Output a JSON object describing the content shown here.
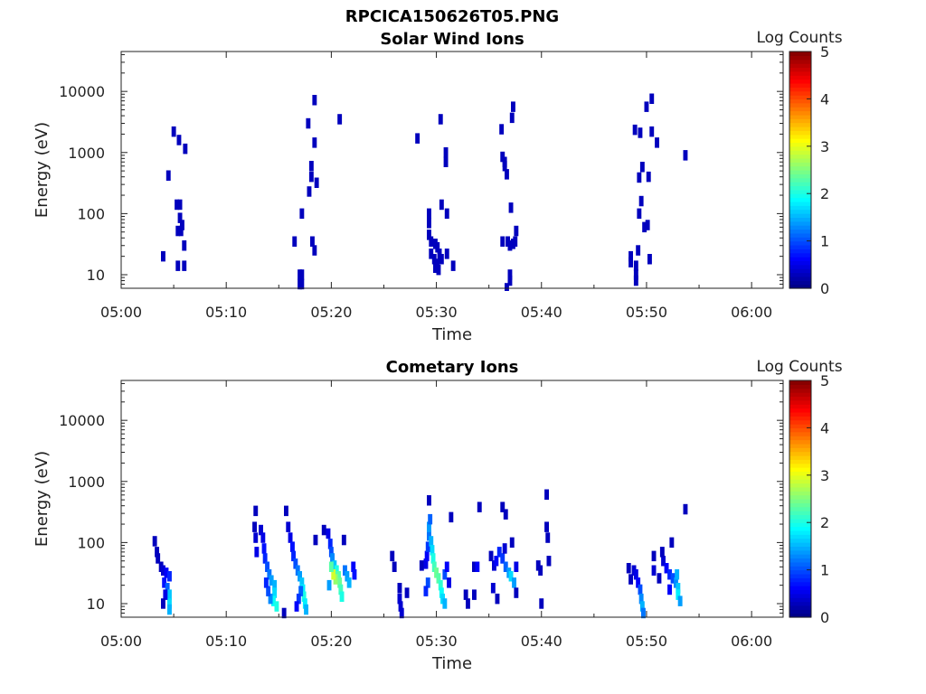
{
  "figure": {
    "title": "RPCICA150626T05.PNG"
  },
  "chart_data": [
    {
      "type": "heatmap",
      "title": "Solar Wind Ions",
      "xlabel": "Time",
      "ylabel": "Energy (eV)",
      "colorbar_label": "Log Counts",
      "x_ticks": [
        "05:00",
        "05:10",
        "05:20",
        "05:30",
        "05:40",
        "05:50",
        "06:00"
      ],
      "x_range_min": [
        0,
        63
      ],
      "y_ticks": [
        "10",
        "100",
        "1000",
        "10000"
      ],
      "y_scale": "log",
      "y_range": [
        6,
        45000
      ],
      "c_ticks": [
        "0",
        "1",
        "2",
        "3",
        "4",
        "5"
      ],
      "c_range": [
        0,
        5
      ],
      "cells": [
        [
          4.0,
          20,
          0.3
        ],
        [
          4.5,
          420,
          0.3
        ],
        [
          5.0,
          2200,
          0.3
        ],
        [
          5.5,
          1600,
          0.3
        ],
        [
          6.1,
          1150,
          0.3
        ],
        [
          5.3,
          140,
          0.3
        ],
        [
          5.6,
          140,
          0.3
        ],
        [
          5.6,
          85,
          0.3
        ],
        [
          5.8,
          65,
          0.3
        ],
        [
          5.4,
          52,
          0.3
        ],
        [
          5.7,
          52,
          0.3
        ],
        [
          6.0,
          30,
          0.3
        ],
        [
          5.4,
          14,
          0.3
        ],
        [
          6.0,
          14,
          0.3
        ],
        [
          16.5,
          35,
          0.3
        ],
        [
          17.0,
          10,
          0.3
        ],
        [
          17.2,
          10,
          0.3
        ],
        [
          17.0,
          7,
          0.3
        ],
        [
          17.2,
          7,
          0.3
        ],
        [
          17.2,
          100,
          0.3
        ],
        [
          17.8,
          3000,
          0.3
        ],
        [
          18.1,
          600,
          0.3
        ],
        [
          18.4,
          1450,
          0.3
        ],
        [
          18.1,
          400,
          0.3
        ],
        [
          17.9,
          230,
          0.3
        ],
        [
          18.6,
          320,
          0.3
        ],
        [
          18.4,
          7200,
          0.3
        ],
        [
          18.2,
          35,
          0.3
        ],
        [
          18.4,
          25,
          0.3
        ],
        [
          20.8,
          3500,
          0.3
        ],
        [
          28.2,
          1700,
          0.3
        ],
        [
          29.3,
          100,
          0.3
        ],
        [
          29.3,
          70,
          0.3
        ],
        [
          29.3,
          45,
          0.3
        ],
        [
          29.5,
          35,
          0.3
        ],
        [
          29.9,
          32,
          0.3
        ],
        [
          30.1,
          28,
          0.3
        ],
        [
          29.5,
          22,
          0.3
        ],
        [
          29.8,
          18,
          0.3
        ],
        [
          30.1,
          15,
          0.3
        ],
        [
          30.3,
          22,
          0.3
        ],
        [
          30.5,
          18,
          0.3
        ],
        [
          30.2,
          12,
          0.3
        ],
        [
          29.9,
          13,
          0.3
        ],
        [
          31.0,
          22,
          0.3
        ],
        [
          31.6,
          14,
          0.3
        ],
        [
          30.4,
          3500,
          0.3
        ],
        [
          30.9,
          1000,
          0.3
        ],
        [
          30.9,
          700,
          0.3
        ],
        [
          30.5,
          140,
          0.3
        ],
        [
          31.0,
          100,
          0.3
        ],
        [
          36.3,
          35,
          0.3
        ],
        [
          36.8,
          35,
          0.3
        ],
        [
          37.3,
          32,
          0.3
        ],
        [
          37.5,
          35,
          0.3
        ],
        [
          37.0,
          30,
          0.3
        ],
        [
          37.6,
          52,
          0.3
        ],
        [
          37.0,
          10,
          0.3
        ],
        [
          37.0,
          8,
          0.3
        ],
        [
          36.2,
          2400,
          0.3
        ],
        [
          36.3,
          850,
          0.3
        ],
        [
          36.5,
          700,
          0.3
        ],
        [
          36.5,
          600,
          0.3
        ],
        [
          36.7,
          440,
          0.3
        ],
        [
          37.2,
          3700,
          0.3
        ],
        [
          37.3,
          5600,
          0.3
        ],
        [
          37.1,
          125,
          0.3
        ],
        [
          36.7,
          6,
          0.3
        ],
        [
          48.5,
          20,
          0.3
        ],
        [
          48.5,
          16,
          0.3
        ],
        [
          49.0,
          14,
          0.3
        ],
        [
          49.0,
          10,
          0.3
        ],
        [
          49.0,
          8,
          0.3
        ],
        [
          49.2,
          25,
          0.3
        ],
        [
          50.3,
          18,
          0.3
        ],
        [
          48.9,
          2350,
          0.3
        ],
        [
          49.4,
          2100,
          0.3
        ],
        [
          50.0,
          5600,
          0.3
        ],
        [
          50.5,
          7600,
          0.3
        ],
        [
          50.5,
          2200,
          0.3
        ],
        [
          51.0,
          1450,
          0.3
        ],
        [
          49.6,
          580,
          0.3
        ],
        [
          49.3,
          390,
          0.3
        ],
        [
          49.5,
          160,
          0.3
        ],
        [
          49.3,
          100,
          0.3
        ],
        [
          50.1,
          65,
          0.3
        ],
        [
          49.8,
          60,
          0.3
        ],
        [
          53.7,
          900,
          0.3
        ],
        [
          50.2,
          400,
          0.3
        ]
      ]
    },
    {
      "type": "heatmap",
      "title": "Cometary Ions",
      "xlabel": "Time",
      "ylabel": "Energy (eV)",
      "colorbar_label": "Log Counts",
      "x_ticks": [
        "05:00",
        "05:10",
        "05:20",
        "05:30",
        "05:40",
        "05:50",
        "06:00"
      ],
      "x_range_min": [
        0,
        63
      ],
      "y_ticks": [
        "10",
        "100",
        "1000",
        "10000"
      ],
      "y_scale": "log",
      "y_range": [
        6,
        45000
      ],
      "c_ticks": [
        "0",
        "1",
        "2",
        "3",
        "4",
        "5"
      ],
      "c_range": [
        0,
        5
      ],
      "cells": [
        [
          3.2,
          105,
          0.3
        ],
        [
          3.4,
          70,
          0.3
        ],
        [
          3.5,
          55,
          0.3
        ],
        [
          3.8,
          40,
          0.3
        ],
        [
          4.0,
          35,
          0.4
        ],
        [
          4.3,
          32,
          0.6
        ],
        [
          4.6,
          28,
          0.8
        ],
        [
          4.1,
          22,
          0.7
        ],
        [
          4.4,
          18,
          1.1
        ],
        [
          4.6,
          14,
          1.6
        ],
        [
          4.6,
          10,
          1.7
        ],
        [
          4.6,
          8,
          1.5
        ],
        [
          4.2,
          14,
          0.5
        ],
        [
          4.0,
          10,
          0.3
        ],
        [
          12.8,
          330,
          0.3
        ],
        [
          12.7,
          180,
          0.3
        ],
        [
          12.8,
          120,
          0.4
        ],
        [
          12.9,
          70,
          0.5
        ],
        [
          13.3,
          160,
          0.4
        ],
        [
          13.5,
          120,
          0.5
        ],
        [
          13.6,
          80,
          0.7
        ],
        [
          13.7,
          55,
          0.8
        ],
        [
          13.9,
          40,
          1.0
        ],
        [
          14.1,
          30,
          1.2
        ],
        [
          14.3,
          24,
          1.4
        ],
        [
          14.6,
          20,
          1.5
        ],
        [
          14.6,
          15,
          1.7
        ],
        [
          14.5,
          11,
          1.9
        ],
        [
          14.8,
          9,
          2.0
        ],
        [
          14.2,
          12,
          1.3
        ],
        [
          14.0,
          16,
          1.0
        ],
        [
          13.8,
          22,
          0.8
        ],
        [
          15.5,
          7,
          0.3
        ],
        [
          15.7,
          330,
          0.3
        ],
        [
          15.9,
          180,
          0.4
        ],
        [
          16.1,
          120,
          0.5
        ],
        [
          16.3,
          85,
          0.7
        ],
        [
          16.4,
          60,
          0.8
        ],
        [
          16.6,
          45,
          1.0
        ],
        [
          16.8,
          35,
          1.2
        ],
        [
          17.0,
          28,
          1.4
        ],
        [
          17.2,
          22,
          1.6
        ],
        [
          17.3,
          17,
          1.8
        ],
        [
          17.4,
          13,
          2.0
        ],
        [
          17.5,
          10,
          1.8
        ],
        [
          17.6,
          8,
          1.5
        ],
        [
          17.1,
          16,
          1.1
        ],
        [
          16.9,
          12,
          0.9
        ],
        [
          16.7,
          9,
          0.6
        ],
        [
          18.5,
          110,
          0.3
        ],
        [
          19.3,
          160,
          0.3
        ],
        [
          19.7,
          140,
          0.5
        ],
        [
          19.9,
          95,
          0.8
        ],
        [
          20.0,
          70,
          1.0
        ],
        [
          20.1,
          55,
          1.3
        ],
        [
          20.3,
          42,
          1.6
        ],
        [
          20.5,
          35,
          2.0
        ],
        [
          20.7,
          28,
          2.3
        ],
        [
          20.8,
          22,
          2.4
        ],
        [
          20.9,
          17,
          2.2
        ],
        [
          21.0,
          13,
          2.0
        ],
        [
          20.4,
          25,
          2.6
        ],
        [
          20.2,
          30,
          2.9
        ],
        [
          20.0,
          40,
          2.3
        ],
        [
          19.8,
          20,
          1.4
        ],
        [
          21.3,
          35,
          1.2
        ],
        [
          21.5,
          28,
          1.4
        ],
        [
          21.7,
          22,
          1.5
        ],
        [
          21.2,
          110,
          0.3
        ],
        [
          22.1,
          40,
          0.6
        ],
        [
          22.2,
          30,
          0.7
        ],
        [
          25.8,
          60,
          0.3
        ],
        [
          26.0,
          40,
          0.3
        ],
        [
          26.5,
          18,
          0.3
        ],
        [
          26.5,
          12,
          0.4
        ],
        [
          26.6,
          9,
          0.4
        ],
        [
          26.7,
          7,
          0.4
        ],
        [
          27.2,
          15,
          0.3
        ],
        [
          28.6,
          42,
          0.3
        ],
        [
          29.0,
          45,
          0.5
        ],
        [
          29.1,
          60,
          0.6
        ],
        [
          29.2,
          85,
          0.9
        ],
        [
          29.3,
          130,
          1.2
        ],
        [
          29.3,
          180,
          1.4
        ],
        [
          29.4,
          240,
          1.1
        ],
        [
          29.5,
          105,
          1.5
        ],
        [
          29.6,
          75,
          1.7
        ],
        [
          29.7,
          55,
          2.0
        ],
        [
          29.8,
          40,
          2.2
        ],
        [
          30.0,
          32,
          2.4
        ],
        [
          30.2,
          26,
          2.3
        ],
        [
          30.4,
          20,
          2.1
        ],
        [
          30.5,
          15,
          1.9
        ],
        [
          30.6,
          12,
          1.7
        ],
        [
          30.8,
          10,
          1.5
        ],
        [
          30.8,
          30,
          1.0
        ],
        [
          31.0,
          40,
          0.6
        ],
        [
          31.2,
          22,
          0.5
        ],
        [
          29.2,
          22,
          1.0
        ],
        [
          29.0,
          16,
          0.8
        ],
        [
          29.3,
          490,
          0.3
        ],
        [
          31.4,
          260,
          0.3
        ],
        [
          32.8,
          14,
          0.3
        ],
        [
          33.0,
          10,
          0.3
        ],
        [
          33.6,
          40,
          0.3
        ],
        [
          33.6,
          14,
          0.3
        ],
        [
          33.9,
          40,
          0.6
        ],
        [
          34.1,
          380,
          0.3
        ],
        [
          35.2,
          60,
          0.3
        ],
        [
          35.5,
          42,
          0.4
        ],
        [
          35.7,
          50,
          0.6
        ],
        [
          36.0,
          70,
          0.8
        ],
        [
          36.3,
          55,
          0.9
        ],
        [
          36.6,
          40,
          1.1
        ],
        [
          36.9,
          32,
          1.4
        ],
        [
          37.1,
          28,
          1.7
        ],
        [
          37.4,
          22,
          1.4
        ],
        [
          37.6,
          40,
          0.5
        ],
        [
          35.4,
          18,
          0.4
        ],
        [
          35.8,
          12,
          0.3
        ],
        [
          37.6,
          15,
          0.3
        ],
        [
          36.5,
          80,
          0.4
        ],
        [
          37.2,
          100,
          0.3
        ],
        [
          36.3,
          380,
          0.3
        ],
        [
          36.6,
          290,
          0.3
        ],
        [
          39.7,
          42,
          0.3
        ],
        [
          39.9,
          35,
          0.3
        ],
        [
          40.0,
          10,
          0.3
        ],
        [
          40.5,
          610,
          0.3
        ],
        [
          40.5,
          180,
          0.3
        ],
        [
          40.6,
          120,
          0.3
        ],
        [
          40.7,
          50,
          0.3
        ],
        [
          48.3,
          38,
          0.3
        ],
        [
          48.5,
          25,
          0.3
        ],
        [
          48.8,
          35,
          0.4
        ],
        [
          49.0,
          30,
          0.5
        ],
        [
          49.2,
          22,
          0.6
        ],
        [
          49.4,
          17,
          1.0
        ],
        [
          49.5,
          12,
          1.3
        ],
        [
          49.6,
          9,
          1.5
        ],
        [
          49.7,
          7,
          1.2
        ],
        [
          50.7,
          35,
          0.4
        ],
        [
          51.2,
          26,
          0.3
        ],
        [
          51.6,
          50,
          0.4
        ],
        [
          51.9,
          38,
          0.6
        ],
        [
          52.2,
          30,
          0.8
        ],
        [
          52.5,
          26,
          1.0
        ],
        [
          52.8,
          22,
          1.3
        ],
        [
          52.9,
          30,
          1.5
        ],
        [
          53.0,
          18,
          1.6
        ],
        [
          53.0,
          14,
          1.8
        ],
        [
          53.2,
          11,
          1.4
        ],
        [
          52.4,
          100,
          0.3
        ],
        [
          51.5,
          70,
          0.3
        ],
        [
          50.7,
          60,
          0.3
        ],
        [
          53.7,
          350,
          0.3
        ],
        [
          52.2,
          17,
          0.6
        ]
      ]
    }
  ]
}
